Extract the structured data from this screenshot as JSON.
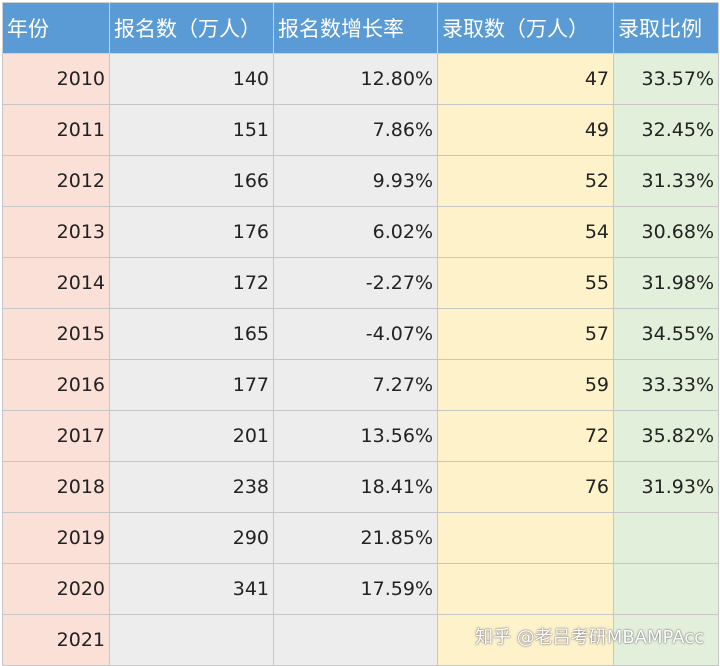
{
  "headers": [
    "年份",
    "报名数（万人）",
    "报名数增长率",
    "录取数（万人）",
    "录取比例"
  ],
  "rows": [
    [
      "2010",
      "140",
      "12.80%",
      "47",
      "33.57%"
    ],
    [
      "2011",
      "151",
      "7.86%",
      "49",
      "32.45%"
    ],
    [
      "2012",
      "166",
      "9.93%",
      "52",
      "31.33%"
    ],
    [
      "2013",
      "176",
      "6.02%",
      "54",
      "30.68%"
    ],
    [
      "2014",
      "172",
      "-2.27%",
      "55",
      "31.98%"
    ],
    [
      "2015",
      "165",
      "-4.07%",
      "57",
      "34.55%"
    ],
    [
      "2016",
      "177",
      "7.27%",
      "59",
      "33.33%"
    ],
    [
      "2017",
      "201",
      "13.56%",
      "72",
      "35.82%"
    ],
    [
      "2018",
      "238",
      "18.41%",
      "76",
      "31.93%"
    ],
    [
      "2019",
      "290",
      "21.85%",
      "",
      ""
    ],
    [
      "2020",
      "341",
      "17.59%",
      "",
      ""
    ],
    [
      "2021",
      "",
      "",
      "",
      ""
    ]
  ],
  "watermark": "知乎 @老吕考研MBAMPAcc",
  "colors": {
    "header": "#5b9bd5",
    "year_col": "#fbe0d8",
    "applicants_col": "#ededed",
    "admitted_col": "#fef2cb",
    "ratio_col": "#e2efda"
  }
}
